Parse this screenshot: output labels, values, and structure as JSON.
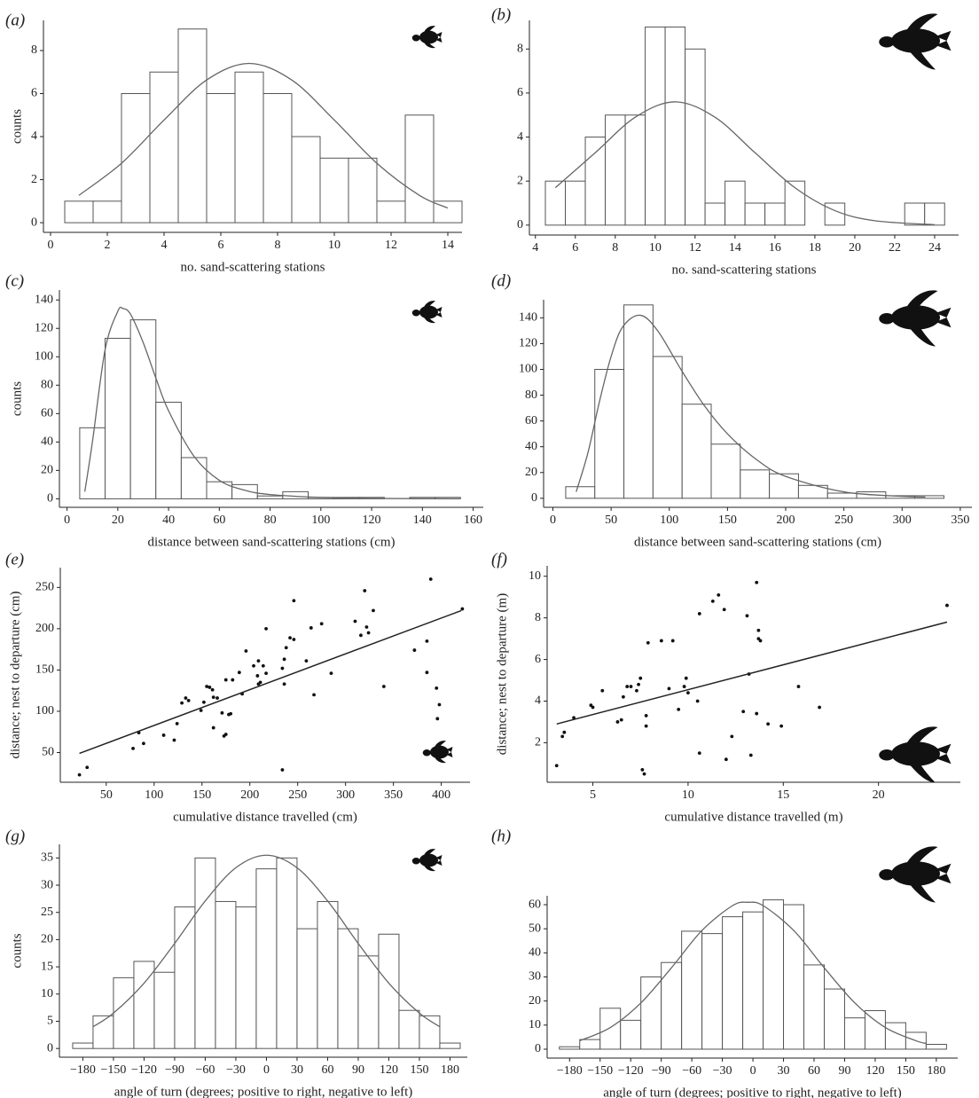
{
  "chart_data": [
    {
      "type": "histogram",
      "panel": "(a)",
      "xlabel": "no. sand-scattering stations",
      "ylabel": "counts",
      "bins": [
        0.5,
        1.5,
        2.5,
        3.5,
        4.5,
        5.5,
        6.5,
        7.5,
        8.5,
        9.5,
        10.5,
        11.5,
        12.5,
        13.5,
        14.5
      ],
      "values": [
        1,
        1,
        6,
        7,
        9,
        6,
        7,
        6,
        4,
        3,
        3,
        1,
        5,
        1
      ],
      "curve": {
        "x": [
          1,
          2.5,
          4,
          5.5,
          7,
          8.5,
          10,
          11.5,
          13,
          14
        ],
        "y": [
          1.27,
          2.76,
          4.77,
          6.63,
          7.4,
          6.63,
          4.77,
          2.76,
          1.27,
          0.68
        ]
      },
      "xlim": [
        -0.25,
        14.5
      ],
      "ylim": [
        -0.45,
        9.4
      ],
      "xticks": [
        0,
        2,
        4,
        6,
        8,
        10,
        12,
        14
      ],
      "yticks": [
        0,
        2,
        4,
        6,
        8
      ]
    },
    {
      "type": "histogram",
      "panel": "(b)",
      "xlabel": "no. sand-scattering stations",
      "bins": [
        4.5,
        5.5,
        6.5,
        7.5,
        8.5,
        9.5,
        10.5,
        11.5,
        12.5,
        13.5,
        14.5,
        15.5,
        16.5,
        17.5,
        18.5,
        19.5,
        20.5,
        21.5,
        22.5,
        23.5,
        24.5
      ],
      "values": [
        2,
        2,
        4,
        5,
        5,
        9,
        9,
        8,
        1,
        2,
        1,
        1,
        2,
        0,
        1,
        0,
        0,
        0,
        1,
        1
      ],
      "curve": {
        "x": [
          5,
          7,
          9,
          11,
          13,
          15,
          17,
          19,
          21,
          24
        ],
        "y": [
          1.7,
          3.29,
          4.9,
          5.6,
          4.9,
          3.29,
          1.7,
          0.66,
          0.2,
          0.02
        ]
      },
      "xlim": [
        3.7,
        25.2
      ],
      "ylim": [
        -0.45,
        9.3
      ],
      "xticks": [
        4,
        6,
        8,
        10,
        12,
        14,
        16,
        18,
        20,
        22,
        24
      ],
      "yticks": [
        0,
        2,
        4,
        6,
        8
      ]
    },
    {
      "type": "histogram",
      "panel": "(c)",
      "xlabel": "distance between sand-scattering stations (cm)",
      "ylabel": "counts",
      "bins": [
        5,
        15,
        25,
        35,
        45,
        55,
        65,
        75,
        85,
        95,
        105,
        115,
        125,
        135,
        145,
        155
      ],
      "values": [
        50,
        113,
        126,
        68,
        29,
        12,
        10,
        2,
        5,
        1,
        1,
        1,
        0,
        1,
        1
      ],
      "curve": {
        "x": [
          7,
          10,
          15,
          20,
          22,
          25,
          30,
          35,
          40,
          50,
          60,
          70,
          80,
          100,
          120,
          140,
          155
        ],
        "y": [
          5,
          40,
          105,
          132,
          134,
          130,
          110,
          85,
          62,
          30,
          13,
          6,
          3,
          1,
          0.3,
          0.1,
          0
        ]
      },
      "xlim": [
        -3,
        164
      ],
      "ylim": [
        -6,
        147
      ],
      "xticks": [
        0,
        20,
        40,
        60,
        80,
        100,
        120,
        140,
        160
      ],
      "yticks": [
        0,
        20,
        40,
        60,
        80,
        100,
        120,
        140
      ]
    },
    {
      "type": "histogram",
      "panel": "(d)",
      "xlabel": "distance between sand-scattering stations (cm)",
      "bins": [
        11,
        36,
        61,
        86,
        111,
        136,
        161,
        186,
        211,
        236,
        261,
        286,
        311,
        336
      ],
      "values": [
        9,
        100,
        150,
        110,
        73,
        42,
        22,
        19,
        10,
        4,
        5,
        2,
        2
      ],
      "curve": {
        "x": [
          20,
          30,
          40,
          50,
          60,
          75,
          90,
          110,
          130,
          150,
          175,
          200,
          250,
          300,
          320
        ],
        "y": [
          5,
          35,
          75,
          110,
          133,
          142,
          130,
          100,
          72,
          50,
          30,
          17,
          5,
          1.5,
          1
        ]
      },
      "xlim": [
        -8,
        360
      ],
      "ylim": [
        -7,
        154
      ],
      "xticks": [
        0,
        50,
        100,
        150,
        200,
        250,
        300,
        350
      ],
      "yticks": [
        0,
        20,
        40,
        60,
        80,
        100,
        120,
        140
      ]
    },
    {
      "type": "scatter",
      "panel": "(e)",
      "xlabel": "cumulative distance travelled (cm)",
      "ylabel": "distance; nest to departure (cm)",
      "x": [
        22,
        30,
        78,
        84,
        89,
        110,
        121,
        124,
        129,
        133,
        136,
        149,
        152,
        155,
        158,
        161,
        162,
        166,
        162,
        171,
        173,
        175,
        178,
        180,
        175,
        182,
        189,
        192,
        196,
        204,
        209,
        208,
        209,
        211,
        214,
        217,
        217,
        234,
        236,
        234,
        236,
        238,
        242,
        246,
        246,
        259,
        264,
        267,
        275,
        285,
        310,
        316,
        320,
        322,
        324,
        329,
        340,
        372,
        385,
        385,
        389,
        395,
        398,
        396,
        422
      ],
      "y": [
        23,
        32,
        55,
        74,
        61,
        71,
        65,
        85,
        110,
        116,
        113,
        101,
        111,
        130,
        129,
        126,
        117,
        116,
        80,
        98,
        70,
        72,
        96,
        97,
        138,
        138,
        147,
        121,
        173,
        155,
        161,
        143,
        133,
        135,
        155,
        200,
        146,
        29,
        133,
        152,
        163,
        177,
        189,
        187,
        234,
        161,
        201,
        120,
        206,
        146,
        209,
        192,
        246,
        202,
        195,
        222,
        130,
        174,
        185,
        147,
        260,
        128,
        108,
        91,
        224
      ],
      "fit_line": {
        "x": [
          22,
          421
        ],
        "y": [
          49,
          222
        ]
      },
      "xlim": [
        2,
        430
      ],
      "ylim": [
        14,
        274
      ],
      "xticks": [
        50,
        100,
        150,
        200,
        250,
        300,
        350,
        400
      ],
      "yticks": [
        50,
        100,
        150,
        200,
        250
      ]
    },
    {
      "type": "scatter",
      "panel": "(f)",
      "xlabel": "cumulative distance travelled (m)",
      "ylabel": "distance; nest to departure (m)",
      "x": [
        3.1,
        3.4,
        3.5,
        4.0,
        4.9,
        5.0,
        5.5,
        6.3,
        6.5,
        6.6,
        6.8,
        7.0,
        7.3,
        7.4,
        7.5,
        7.6,
        7.7,
        7.8,
        7.8,
        7.9,
        8.6,
        9.2,
        9.0,
        9.5,
        9.8,
        9.9,
        10.0,
        10.5,
        10.6,
        10.6,
        11.3,
        11.6,
        11.9,
        12.0,
        12.3,
        12.9,
        13.1,
        13.2,
        13.3,
        13.6,
        13.6,
        13.7,
        13.7,
        13.8,
        14.2,
        14.9,
        15.8,
        16.9,
        23.6
      ],
      "y": [
        0.9,
        2.3,
        2.5,
        3.2,
        3.8,
        3.7,
        4.5,
        3.0,
        3.1,
        4.2,
        4.7,
        4.7,
        4.5,
        4.8,
        5.1,
        0.7,
        0.5,
        2.8,
        3.3,
        6.8,
        6.9,
        6.9,
        4.6,
        3.6,
        4.7,
        5.1,
        4.4,
        4.0,
        8.2,
        1.5,
        8.8,
        9.1,
        8.4,
        1.2,
        2.3,
        3.5,
        8.1,
        5.3,
        1.4,
        3.4,
        9.7,
        7.4,
        7.0,
        6.9,
        2.9,
        2.8,
        4.7,
        3.7,
        8.6
      ],
      "fit_line": {
        "x": [
          3.1,
          23.6
        ],
        "y": [
          2.9,
          7.8
        ]
      },
      "xlim": [
        2.6,
        24.3
      ],
      "ylim": [
        0.1,
        10.5
      ],
      "xticks": [
        5,
        10,
        15,
        20
      ],
      "yticks": [
        2,
        4,
        6,
        8,
        10
      ]
    },
    {
      "type": "histogram",
      "panel": "(g)",
      "xlabel": "angle of turn (degrees; positive to right, negative to left)",
      "ylabel": "counts",
      "bins": [
        -190,
        -170,
        -150,
        -130,
        -110,
        -90,
        -70,
        -50,
        -30,
        -10,
        10,
        30,
        50,
        70,
        90,
        110,
        130,
        150,
        170,
        190
      ],
      "values": [
        1,
        6,
        13,
        16,
        14,
        26,
        35,
        27,
        26,
        33,
        35,
        22,
        27,
        22,
        17,
        21,
        7,
        6,
        1
      ],
      "curve": {
        "x": [
          -170,
          -150,
          -120,
          -90,
          -60,
          -30,
          0,
          30,
          60,
          90,
          120,
          150,
          170
        ],
        "y": [
          4.0,
          6.5,
          12.0,
          19.3,
          27.1,
          33.2,
          35.5,
          33.2,
          27.1,
          19.3,
          12.0,
          6.5,
          4.0
        ]
      },
      "xlim": [
        -203,
        197
      ],
      "ylim": [
        -1.6,
        37.5
      ],
      "xticks": [
        {
          "value": -180,
          "label": "−180"
        },
        {
          "value": -150,
          "label": "−150"
        },
        {
          "value": -120,
          "label": "−120"
        },
        {
          "value": -90,
          "label": "−90"
        },
        {
          "value": -60,
          "label": "−60"
        },
        {
          "value": -30,
          "label": "−30"
        },
        0,
        30,
        60,
        90,
        120,
        150,
        180
      ],
      "yticks": [
        0,
        5,
        10,
        15,
        20,
        25,
        30,
        35
      ]
    },
    {
      "type": "histogram",
      "panel": "(h)",
      "xlabel": "angle of turn (degrees; positive to right, negative to left)",
      "bins": [
        -190,
        -170,
        -150,
        -130,
        -110,
        -90,
        -70,
        -50,
        -30,
        -10,
        10,
        30,
        50,
        70,
        90,
        110,
        130,
        150,
        170,
        190
      ],
      "values": [
        1,
        4,
        17,
        12,
        30,
        36,
        49,
        48,
        55,
        57,
        62,
        60,
        35,
        25,
        13,
        16,
        11,
        7,
        2
      ],
      "curve": {
        "x": [
          -170,
          -140,
          -110,
          -80,
          -50,
          -20,
          -5,
          10,
          40,
          70,
          100,
          130,
          160,
          170
        ],
        "y": [
          3.5,
          9.0,
          19.2,
          33.8,
          49.3,
          59.6,
          61,
          59.6,
          49.3,
          33.8,
          19.2,
          9.0,
          3.5,
          2.4
        ]
      },
      "xlim": [
        -202,
        201
      ],
      "ylim": [
        -3.7,
        63.7
      ],
      "xticks": [
        {
          "value": -180,
          "label": "−180"
        },
        {
          "value": -150,
          "label": "−150"
        },
        {
          "value": -120,
          "label": "−120"
        },
        {
          "value": -90,
          "label": "−90"
        },
        {
          "value": -60,
          "label": "−60"
        },
        {
          "value": -30,
          "label": "−30"
        },
        0,
        30,
        60,
        90,
        120,
        150,
        180
      ],
      "yticks": [
        0,
        10,
        20,
        30,
        40,
        50,
        60
      ]
    }
  ]
}
